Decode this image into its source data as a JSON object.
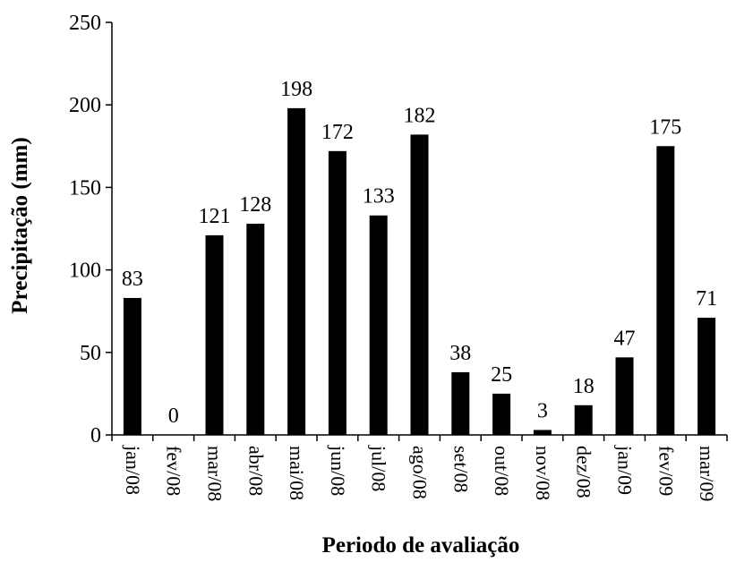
{
  "chart_data": {
    "type": "bar",
    "categories": [
      "jan/08",
      "fev/08",
      "mar/08",
      "abr/08",
      "mai/08",
      "jun/08",
      "jul/08",
      "ago/08",
      "set/08",
      "out/08",
      "nov/08",
      "dez/08",
      "jan/09",
      "fev/09",
      "mar/09"
    ],
    "values": [
      83,
      0,
      121,
      128,
      198,
      172,
      133,
      182,
      38,
      25,
      3,
      18,
      47,
      175,
      71
    ],
    "data_labels": [
      "83",
      "0",
      "121",
      "128",
      "198",
      "172",
      "133",
      "182",
      "38",
      "25",
      "3",
      "18",
      "47",
      "175",
      "71"
    ],
    "xlabel": "Periodo de avaliação",
    "ylabel": "Precipitação (mm)",
    "ylim": [
      0,
      250
    ],
    "yticks": [
      0,
      50,
      100,
      150,
      200,
      250
    ],
    "grid": false,
    "bar_color": "#000000"
  }
}
